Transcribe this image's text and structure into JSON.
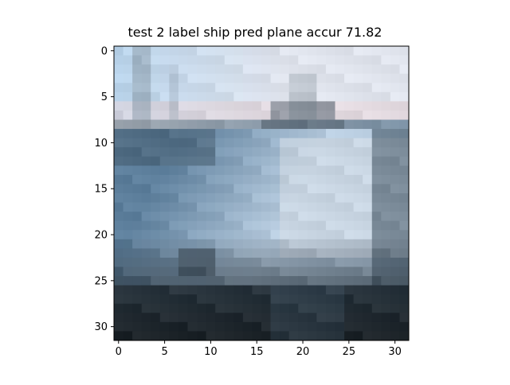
{
  "title": "test 2 label ship pred plane accur 71.82",
  "image": {
    "grid_size": 32,
    "description": "",
    "scene_palette": {
      "sky_top": "#b9d3ea",
      "sky_light": "#dfe3ec",
      "sky_pink": "#e5cfd1",
      "horizon": "#9aa3ad",
      "mast": "#8a9aa9",
      "sea_dark": "#3c4f5e",
      "sea_mid": "#5d7f9c",
      "hull_light": "#b9cde0",
      "hull_white": "#d7dde4",
      "deck_grey": "#9ea8b1",
      "shadow": "#2a3640",
      "bottom_dark": "#1c2328"
    }
  },
  "axes": {
    "x_ticks": [
      "0",
      "5",
      "10",
      "15",
      "20",
      "25",
      "30"
    ],
    "y_ticks": [
      "0",
      "5",
      "10",
      "15",
      "20",
      "25",
      "30"
    ],
    "xlim": [
      -0.5,
      31.5
    ],
    "ylim": [
      31.5,
      -0.5
    ]
  }
}
